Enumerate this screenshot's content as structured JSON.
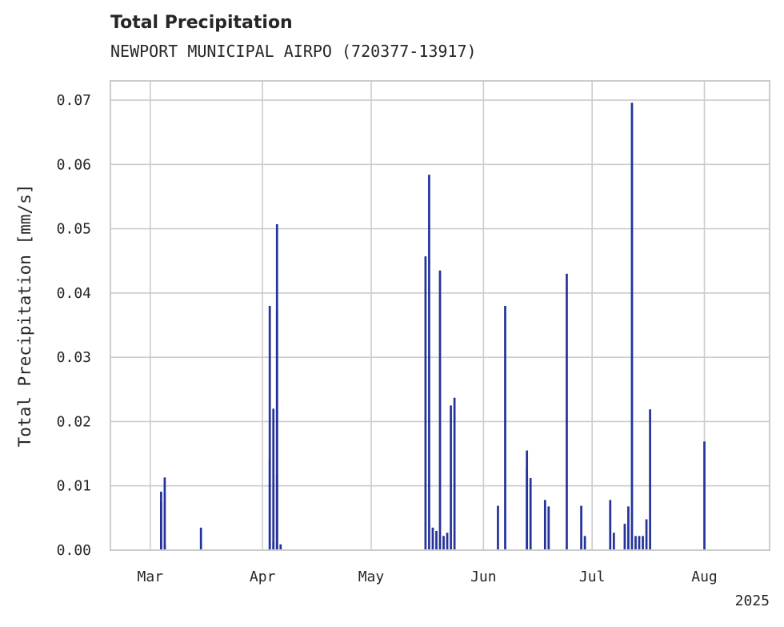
{
  "chart_data": {
    "type": "bar",
    "title": "Total Precipitation",
    "subtitle": "NEWPORT MUNICIPAL AIRPO (720377-13917)",
    "xlabel": "",
    "ylabel": "Total Precipitation [mm/s]",
    "x_tick_labels": [
      "Mar",
      "Apr",
      "May",
      "Jun",
      "Jul",
      "Aug"
    ],
    "x_tick_dates": [
      "2025-03-01",
      "2025-04-01",
      "2025-05-01",
      "2025-06-01",
      "2025-07-01",
      "2025-08-01"
    ],
    "x_offset_label": "2025",
    "xlim": [
      "2025-02-18",
      "2025-08-19"
    ],
    "ylim": [
      0,
      0.073
    ],
    "y_ticks": [
      "0.00",
      "0.01",
      "0.02",
      "0.03",
      "0.04",
      "0.05",
      "0.06",
      "0.07"
    ],
    "grid": true,
    "bar_color": "#25329a",
    "series": [
      {
        "x": [
          "2025-03-04",
          "2025-03-04",
          "2025-03-05",
          "2025-03-05",
          "2025-03-15",
          "2025-04-03",
          "2025-04-03",
          "2025-04-04",
          "2025-04-04",
          "2025-04-05",
          "2025-04-05",
          "2025-04-05",
          "2025-04-06",
          "2025-05-16",
          "2025-05-17",
          "2025-05-18",
          "2025-05-19",
          "2025-05-20",
          "2025-05-21",
          "2025-05-22",
          "2025-05-23",
          "2025-05-24",
          "2025-06-05",
          "2025-06-07",
          "2025-06-13",
          "2025-06-13",
          "2025-06-14",
          "2025-06-18",
          "2025-06-19",
          "2025-06-24",
          "2025-06-28",
          "2025-06-29",
          "2025-07-06",
          "2025-07-07",
          "2025-07-10",
          "2025-07-11",
          "2025-07-12",
          "2025-07-13",
          "2025-07-14",
          "2025-07-15",
          "2025-07-16",
          "2025-07-17",
          "2025-08-01"
        ],
        "values": [
          0.0075,
          0.0091,
          0.0113,
          0.0008,
          0.0035,
          0.038,
          0.0142,
          0.0012,
          0.022,
          0.0507,
          0.0373,
          0.0118,
          0.0009,
          0.0457,
          0.0584,
          0.0035,
          0.003,
          0.0435,
          0.0022,
          0.0027,
          0.0225,
          0.0237,
          0.0069,
          0.038,
          0.0127,
          0.0155,
          0.0112,
          0.0078,
          0.0068,
          0.043,
          0.0069,
          0.0022,
          0.0078,
          0.0027,
          0.0041,
          0.0068,
          0.0696,
          0.0022,
          0.0022,
          0.0022,
          0.0048,
          0.0219,
          0.0169
        ]
      }
    ]
  }
}
